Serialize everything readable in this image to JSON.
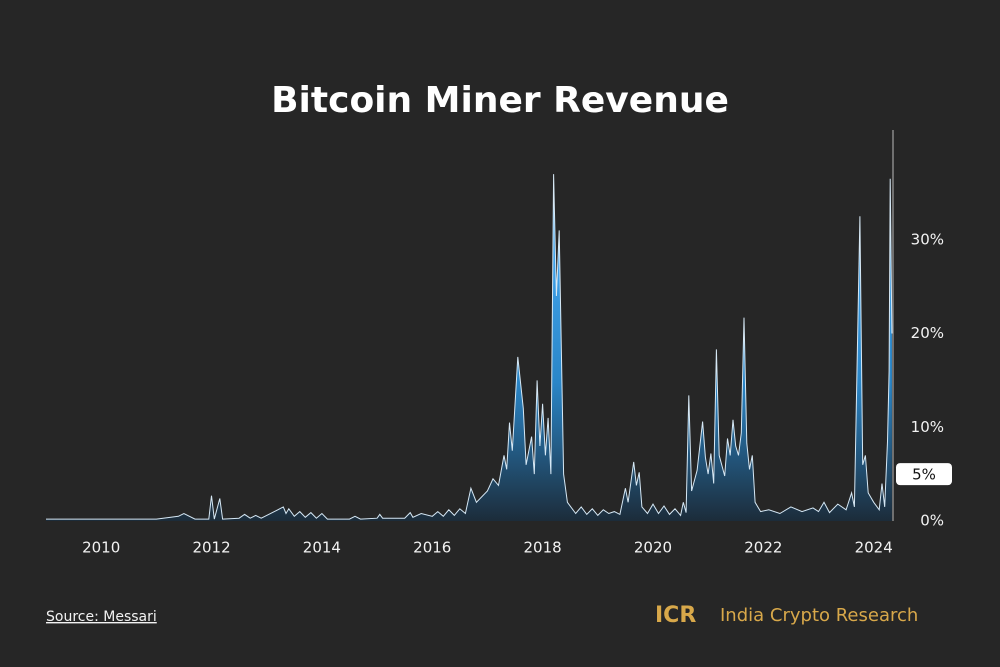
{
  "chart_data": {
    "type": "area",
    "title": "Bitcoin Miner Revenue",
    "x": [
      2009.0,
      2010.0,
      2011.0,
      2011.4,
      2011.5,
      2011.7,
      2011.95,
      2012.0,
      2012.05,
      2012.15,
      2012.2,
      2012.5,
      2012.6,
      2012.7,
      2012.8,
      2012.9,
      2013.0,
      2013.2,
      2013.3,
      2013.35,
      2013.4,
      2013.5,
      2013.6,
      2013.7,
      2013.8,
      2013.9,
      2014.0,
      2014.1,
      2014.5,
      2014.6,
      2014.7,
      2015.0,
      2015.05,
      2015.1,
      2015.5,
      2015.6,
      2015.65,
      2015.8,
      2016.0,
      2016.1,
      2016.2,
      2016.3,
      2016.4,
      2016.5,
      2016.6,
      2016.7,
      2016.8,
      2017.0,
      2017.1,
      2017.2,
      2017.3,
      2017.35,
      2017.4,
      2017.45,
      2017.55,
      2017.65,
      2017.7,
      2017.8,
      2017.85,
      2017.9,
      2017.95,
      2018.0,
      2018.05,
      2018.1,
      2018.15,
      2018.2,
      2018.25,
      2018.3,
      2018.38,
      2018.45,
      2018.6,
      2018.7,
      2018.8,
      2018.9,
      2019.0,
      2019.1,
      2019.2,
      2019.3,
      2019.4,
      2019.5,
      2019.55,
      2019.65,
      2019.7,
      2019.75,
      2019.8,
      2019.9,
      2020.0,
      2020.1,
      2020.2,
      2020.3,
      2020.4,
      2020.5,
      2020.55,
      2020.6,
      2020.65,
      2020.7,
      2020.8,
      2020.9,
      2020.95,
      2021.0,
      2021.05,
      2021.1,
      2021.15,
      2021.2,
      2021.3,
      2021.35,
      2021.4,
      2021.45,
      2021.5,
      2021.55,
      2021.6,
      2021.65,
      2021.7,
      2021.75,
      2021.8,
      2021.85,
      2021.95,
      2022.1,
      2022.3,
      2022.5,
      2022.7,
      2022.9,
      2023.0,
      2023.1,
      2023.2,
      2023.35,
      2023.5,
      2023.6,
      2023.65,
      2023.75,
      2023.8,
      2023.85,
      2023.9,
      2024.0,
      2024.1,
      2024.15,
      2024.2,
      2024.25,
      2024.28,
      2024.3,
      2024.33
    ],
    "values": [
      0.2,
      0.2,
      0.2,
      0.5,
      0.8,
      0.2,
      0.2,
      2.7,
      0.2,
      2.4,
      0.2,
      0.3,
      0.7,
      0.3,
      0.6,
      0.3,
      0.6,
      1.2,
      1.5,
      0.8,
      1.3,
      0.5,
      1.0,
      0.4,
      0.9,
      0.3,
      0.8,
      0.2,
      0.2,
      0.5,
      0.2,
      0.3,
      0.7,
      0.3,
      0.3,
      0.9,
      0.4,
      0.8,
      0.5,
      1.0,
      0.5,
      1.2,
      0.6,
      1.3,
      0.8,
      3.5,
      2.0,
      3.2,
      4.5,
      3.8,
      7.0,
      5.5,
      10.5,
      7.5,
      17.5,
      12,
      6,
      9,
      5,
      15.0,
      8,
      12.5,
      7,
      11,
      5,
      37,
      24,
      31,
      5,
      2,
      0.8,
      1.5,
      0.7,
      1.3,
      0.6,
      1.2,
      0.8,
      1.0,
      0.7,
      3.5,
      2.0,
      6.3,
      3.8,
      5.2,
      1.5,
      0.8,
      1.8,
      0.8,
      1.6,
      0.7,
      1.3,
      0.6,
      2.0,
      0.9,
      13.4,
      3.2,
      5.4,
      10.6,
      6.8,
      5.0,
      7.2,
      4.0,
      18.3,
      7.0,
      4.8,
      8.8,
      7.0,
      10.8,
      8.0,
      7.0,
      9.4,
      21.7,
      8.3,
      5.5,
      7.0,
      2.0,
      1.0,
      1.2,
      0.8,
      1.5,
      1.0,
      1.4,
      1.0,
      2.0,
      0.9,
      1.8,
      1.2,
      3.0,
      1.5,
      32.5,
      6.0,
      7.0,
      3.0,
      2.0,
      1.2,
      4.0,
      1.5,
      8.5,
      16,
      36.5,
      20
    ],
    "color": "#3a9fe8",
    "xlim": [
      2009,
      2024.35
    ],
    "xticks": [
      2010,
      2012,
      2014,
      2016,
      2018,
      2020,
      2022,
      2024
    ],
    "ylim": [
      0,
      40
    ],
    "yticks": [
      {
        "value": 0,
        "label": "0%"
      },
      {
        "value": 10,
        "label": "10%"
      },
      {
        "value": 20,
        "label": "20%"
      },
      {
        "value": 30,
        "label": "30%"
      }
    ],
    "annotation": {
      "value": 5,
      "label": "5%"
    }
  },
  "footer": {
    "source": "Source: Messari",
    "logo": "ICR",
    "brand": "India Crypto Research"
  }
}
